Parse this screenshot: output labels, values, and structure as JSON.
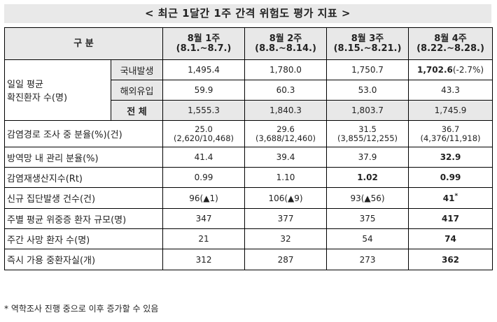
{
  "title": "< 최근 1달간 1주 간격 위험도 평가 지표 >",
  "header": {
    "category": "구  분",
    "weeks": [
      {
        "label": "8월 1주",
        "range": "(8.1.~8.7.)"
      },
      {
        "label": "8월 2주",
        "range": "(8.8.~8.14.)"
      },
      {
        "label": "8월 3주",
        "range": "(8.15.~8.21.)"
      },
      {
        "label": "8월 4주",
        "range": "(8.22.~8.28.)"
      }
    ]
  },
  "daily_avg": {
    "label": "일일 평균 확진환자 수(명)",
    "label_line1": "일일 평균",
    "label_line2": "확진환자 수(명)",
    "rows": [
      {
        "sub": "국내발생",
        "values": [
          "1,495.4",
          "1,780.0",
          "1,750.7",
          "1,702.6"
        ],
        "last_extra": "(-2.7%)"
      },
      {
        "sub": "해외유입",
        "values": [
          "59.9",
          "60.3",
          "53.0",
          "43.3"
        ]
      },
      {
        "sub": "전  체",
        "values": [
          "1,555.3",
          "1,840.3",
          "1,803.7",
          "1,745.9"
        ]
      }
    ]
  },
  "rows": [
    {
      "label": "감염경로 조사 중 분율(%)(건)",
      "values": [
        {
          "main": "25.0",
          "sub": "(2,620/10,468)"
        },
        {
          "main": "29.6",
          "sub": "(3,688/12,460)"
        },
        {
          "main": "31.5",
          "sub": "(3,855/12,255)"
        },
        {
          "main": "36.7",
          "sub": "(4,376/11,918)"
        }
      ]
    },
    {
      "label": "방역망 내 관리 분율(%)",
      "values": [
        "41.4",
        "39.4",
        "37.9",
        "32.9"
      ]
    },
    {
      "label": "감염재생산지수(Rt)",
      "values": [
        "0.99",
        "1.10",
        "1.02",
        "0.99"
      ]
    },
    {
      "label": "신규 집단발생 건수(건)",
      "values": [
        "96(▲1)",
        "106(▲9)",
        "93(▲56)",
        "41"
      ],
      "last_sup": "*"
    },
    {
      "label": "주별 평균 위중증 환자 규모(명)",
      "values": [
        "347",
        "377",
        "375",
        "417"
      ]
    },
    {
      "label": "주간 사망 환자 수(명)",
      "values": [
        "21",
        "32",
        "54",
        "74"
      ]
    },
    {
      "label": "즉시 가용 중환자실(개)",
      "values": [
        "312",
        "287",
        "273",
        "362"
      ]
    }
  ],
  "footnote": "* 역학조사 진행 중으로 이후 증가할 수 있음"
}
